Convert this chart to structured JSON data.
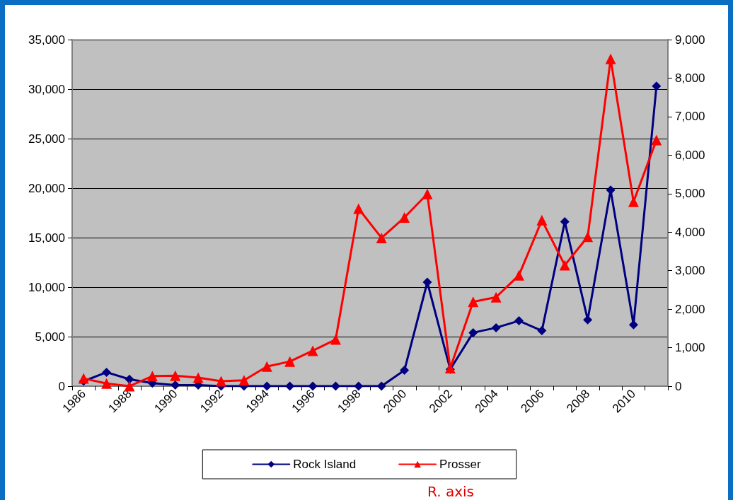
{
  "chart_data": {
    "type": "line",
    "categories": [
      "1986",
      null,
      "1988",
      null,
      "1990",
      null,
      "1992",
      null,
      "1994",
      null,
      "1996",
      null,
      "1998",
      null,
      "2000",
      null,
      "2002",
      null,
      "2004",
      null,
      "2006",
      null,
      "2008",
      null,
      "2010",
      null
    ],
    "series": [
      {
        "name": "Rock Island",
        "color": "#000080",
        "marker": "diamond",
        "values": [
          500,
          1400,
          700,
          300,
          100,
          100,
          0,
          0,
          0,
          0,
          0,
          0,
          0,
          0,
          1600,
          10500,
          1700,
          5400,
          5900,
          6600,
          5600,
          16600,
          6700,
          19800,
          6200,
          30300
        ]
      },
      {
        "name": "Prosser",
        "color": "#ff0000",
        "marker": "triangle",
        "axis": "y2",
        "values": [
          200,
          70,
          0,
          260,
          270,
          220,
          130,
          150,
          510,
          640,
          920,
          1210,
          4610,
          3850,
          4380,
          4990,
          470,
          2190,
          2310,
          2880,
          4310,
          3140,
          3880,
          8500,
          4790,
          6390
        ]
      }
    ],
    "ylim": [
      0,
      35000
    ],
    "yticks": [
      0,
      {
        "value": 5000,
        "label": "5,000"
      },
      {
        "value": 10000,
        "label": "10,000"
      },
      {
        "value": 15000,
        "label": "15,000"
      },
      {
        "value": 20000,
        "label": "20,000"
      },
      {
        "value": 25000,
        "label": "25,000"
      },
      {
        "value": 30000,
        "label": "30,000"
      },
      {
        "value": 35000,
        "label": "35,000"
      }
    ],
    "y2lim": [
      0,
      9000
    ],
    "y2ticks": [
      0,
      {
        "value": 1000,
        "label": "1,000"
      },
      {
        "value": 2000,
        "label": "2,000"
      },
      {
        "value": 3000,
        "label": "3,000"
      },
      {
        "value": 4000,
        "label": "4,000"
      },
      {
        "value": 5000,
        "label": "5,000"
      },
      {
        "value": 6000,
        "label": "6,000"
      },
      {
        "value": 7000,
        "label": "7,000"
      },
      {
        "value": 8000,
        "label": "8,000"
      },
      {
        "value": 9000,
        "label": "9,000"
      }
    ],
    "grid": "y",
    "legend": "bottom",
    "annotations": [
      "R. axis"
    ]
  }
}
